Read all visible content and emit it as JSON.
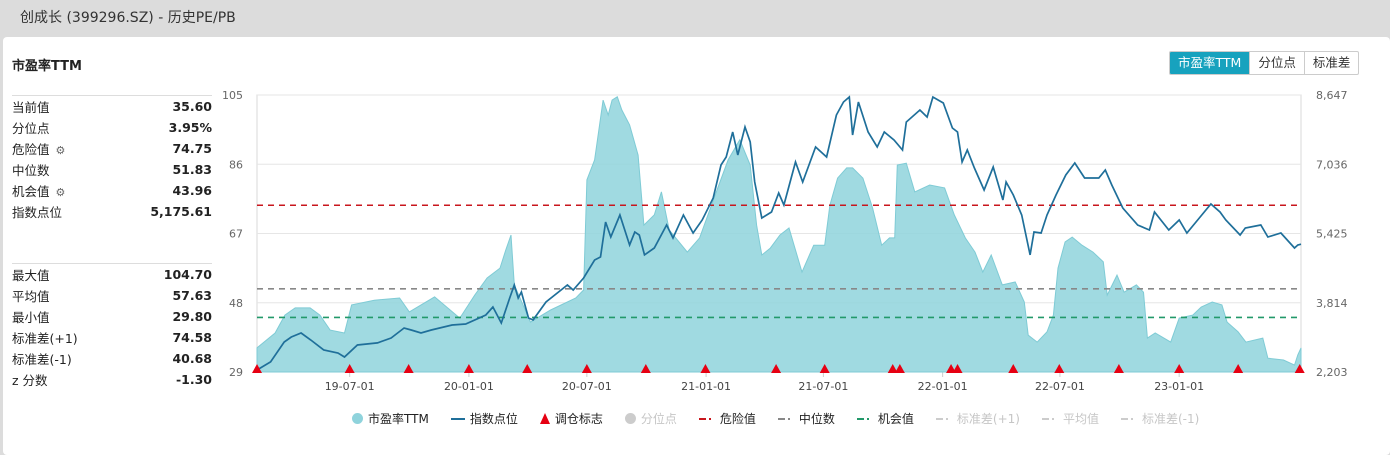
{
  "window": {
    "title": "创成长 (399296.SZ) - 历史PE/PB"
  },
  "section_title": "市盈率TTM",
  "toggle": {
    "options": [
      "市盈率TTM",
      "分位点",
      "标准差"
    ],
    "active": "市盈率TTM"
  },
  "stats_group1": [
    {
      "label": "当前值",
      "value": "35.60"
    },
    {
      "label": "分位点",
      "value": "3.95%"
    },
    {
      "label": "危险值",
      "value": "74.75",
      "icon": "gear-icon"
    },
    {
      "label": "中位数",
      "value": "51.83"
    },
    {
      "label": "机会值",
      "value": "43.96",
      "icon": "gear-icon"
    },
    {
      "label": "指数点位",
      "value": "5,175.61"
    }
  ],
  "stats_group2": [
    {
      "label": "最大值",
      "value": "104.70"
    },
    {
      "label": "平均值",
      "value": "57.63"
    },
    {
      "label": "最小值",
      "value": "29.80"
    },
    {
      "label": "标准差(+1)",
      "value": "74.58"
    },
    {
      "label": "标准差(-1)",
      "value": "40.68"
    },
    {
      "label": "z 分数",
      "value": "-1.30"
    }
  ],
  "chart_data": {
    "type": "area+line",
    "x_range": [
      "2019-02-08",
      "2023-07-08"
    ],
    "x_ticks": [
      "19-07-01",
      "20-01-01",
      "20-07-01",
      "21-01-01",
      "21-07-01",
      "22-01-01",
      "22-07-01",
      "23-01-01"
    ],
    "x_tick_dates": [
      "2019-07-01",
      "2020-01-01",
      "2020-07-01",
      "2021-01-01",
      "2021-07-01",
      "2022-01-01",
      "2022-07-01",
      "2023-01-01"
    ],
    "y_left": {
      "range": [
        29,
        105
      ],
      "ticks": [
        "105",
        "86",
        "67",
        "48",
        "29"
      ],
      "tick_values": [
        105,
        86,
        67,
        48,
        29
      ]
    },
    "y_right": {
      "range": [
        2203,
        8647
      ],
      "ticks": [
        "8,647",
        "7,036",
        "5,425",
        "3,814",
        "2,203"
      ],
      "tick_values": [
        8647,
        7036,
        5425,
        3814,
        2203
      ]
    },
    "grid": true,
    "colors": {
      "pe": "#8fd3dc",
      "index": "#1f6f9a",
      "rebalance": "#e60012",
      "danger": "#c8161d",
      "median": "#888888",
      "opportunity": "#22996a",
      "disabled": "#cccccc"
    },
    "reference_lines": [
      {
        "name": "危险值",
        "value": 74.75,
        "color": "#c8161d"
      },
      {
        "name": "中位数",
        "value": 51.83,
        "color": "#888888"
      },
      {
        "name": "机会值",
        "value": 43.96,
        "color": "#22996a"
      }
    ],
    "pe_series": {
      "name": "市盈率TTM",
      "points": [
        [
          "2019-02-08",
          35.6
        ],
        [
          "2019-03-08",
          39.7
        ],
        [
          "2019-03-23",
          44.6
        ],
        [
          "2019-04-08",
          46.6
        ],
        [
          "2019-05-01",
          46.6
        ],
        [
          "2019-05-16",
          44.6
        ],
        [
          "2019-06-01",
          40.5
        ],
        [
          "2019-06-23",
          39.7
        ],
        [
          "2019-07-04",
          47.4
        ],
        [
          "2019-08-08",
          48.7
        ],
        [
          "2019-09-16",
          49.3
        ],
        [
          "2019-10-01",
          45.5
        ],
        [
          "2019-11-09",
          49.6
        ],
        [
          "2019-12-18",
          43.8
        ],
        [
          "2020-01-10",
          50.1
        ],
        [
          "2020-01-29",
          54.8
        ],
        [
          "2020-02-18",
          57.5
        ],
        [
          "2020-02-27",
          62.5
        ],
        [
          "2020-03-06",
          66.6
        ],
        [
          "2020-03-11",
          52.9
        ],
        [
          "2020-04-05",
          42.7
        ],
        [
          "2020-05-06",
          46.0
        ],
        [
          "2020-06-14",
          49.3
        ],
        [
          "2020-06-26",
          51.5
        ],
        [
          "2020-07-01",
          81.7
        ],
        [
          "2020-07-13",
          87.2
        ],
        [
          "2020-07-26",
          103.6
        ],
        [
          "2020-08-03",
          99.5
        ],
        [
          "2020-08-09",
          103.6
        ],
        [
          "2020-08-17",
          104.5
        ],
        [
          "2020-08-24",
          100.9
        ],
        [
          "2020-09-05",
          96.8
        ],
        [
          "2020-09-18",
          88.5
        ],
        [
          "2020-09-27",
          69.3
        ],
        [
          "2020-10-13",
          72.1
        ],
        [
          "2020-10-24",
          78.4
        ],
        [
          "2020-11-05",
          68.0
        ],
        [
          "2020-12-03",
          61.9
        ],
        [
          "2020-12-22",
          65.8
        ],
        [
          "2021-01-15",
          77.6
        ],
        [
          "2021-02-04",
          87.2
        ],
        [
          "2021-02-22",
          92.7
        ],
        [
          "2021-03-10",
          85.8
        ],
        [
          "2021-03-20",
          69.3
        ],
        [
          "2021-03-28",
          61.1
        ],
        [
          "2021-04-10",
          63.0
        ],
        [
          "2021-04-25",
          66.6
        ],
        [
          "2021-05-09",
          68.5
        ],
        [
          "2021-05-29",
          56.4
        ],
        [
          "2021-06-16",
          63.8
        ],
        [
          "2021-07-03",
          63.8
        ],
        [
          "2021-07-11",
          74.8
        ],
        [
          "2021-07-23",
          82.2
        ],
        [
          "2021-08-06",
          85.0
        ],
        [
          "2021-08-15",
          85.0
        ],
        [
          "2021-08-31",
          82.2
        ],
        [
          "2021-09-15",
          74.0
        ],
        [
          "2021-09-29",
          63.8
        ],
        [
          "2021-10-11",
          65.8
        ],
        [
          "2021-10-19",
          65.8
        ],
        [
          "2021-10-23",
          85.8
        ],
        [
          "2021-11-06",
          86.3
        ],
        [
          "2021-11-19",
          78.4
        ],
        [
          "2021-12-12",
          80.3
        ],
        [
          "2022-01-04",
          79.5
        ],
        [
          "2022-01-19",
          72.1
        ],
        [
          "2022-02-05",
          65.8
        ],
        [
          "2022-02-20",
          61.9
        ],
        [
          "2022-03-04",
          56.4
        ],
        [
          "2022-03-17",
          61.1
        ],
        [
          "2022-04-03",
          52.9
        ],
        [
          "2022-04-23",
          53.7
        ],
        [
          "2022-05-07",
          48.2
        ],
        [
          "2022-05-13",
          39.1
        ],
        [
          "2022-05-27",
          37.2
        ],
        [
          "2022-06-11",
          40.0
        ],
        [
          "2022-06-21",
          44.6
        ],
        [
          "2022-06-28",
          57.5
        ],
        [
          "2022-07-09",
          64.7
        ],
        [
          "2022-07-20",
          66.0
        ],
        [
          "2022-08-04",
          63.8
        ],
        [
          "2022-08-21",
          61.9
        ],
        [
          "2022-09-06",
          59.2
        ],
        [
          "2022-09-12",
          50.1
        ],
        [
          "2022-09-27",
          55.6
        ],
        [
          "2022-10-08",
          50.9
        ],
        [
          "2022-10-27",
          52.9
        ],
        [
          "2022-11-07",
          50.9
        ],
        [
          "2022-11-13",
          38.3
        ],
        [
          "2022-11-25",
          39.7
        ],
        [
          "2022-12-19",
          37.2
        ],
        [
          "2023-01-01",
          43.8
        ],
        [
          "2023-01-22",
          44.6
        ],
        [
          "2023-02-04",
          46.8
        ],
        [
          "2023-02-21",
          48.2
        ],
        [
          "2023-03-08",
          47.4
        ],
        [
          "2023-03-16",
          42.7
        ],
        [
          "2023-04-02",
          40.0
        ],
        [
          "2023-04-14",
          37.2
        ],
        [
          "2023-05-10",
          38.3
        ],
        [
          "2023-05-18",
          32.8
        ],
        [
          "2023-06-11",
          32.3
        ],
        [
          "2023-06-28",
          30.9
        ],
        [
          "2023-07-03",
          33.7
        ],
        [
          "2023-07-08",
          35.6
        ]
      ]
    },
    "index_series": {
      "name": "指数点位",
      "points": [
        [
          "2019-02-08",
          2250
        ],
        [
          "2019-03-01",
          2437
        ],
        [
          "2019-03-22",
          2902
        ],
        [
          "2019-04-02",
          3018
        ],
        [
          "2019-04-17",
          3111
        ],
        [
          "2019-05-02",
          2948
        ],
        [
          "2019-05-22",
          2716
        ],
        [
          "2019-06-13",
          2646
        ],
        [
          "2019-06-23",
          2553
        ],
        [
          "2019-07-13",
          2832
        ],
        [
          "2019-08-13",
          2879
        ],
        [
          "2019-09-03",
          2995
        ],
        [
          "2019-09-23",
          3227
        ],
        [
          "2019-10-04",
          3181
        ],
        [
          "2019-10-19",
          3111
        ],
        [
          "2019-11-04",
          3181
        ],
        [
          "2019-12-06",
          3297
        ],
        [
          "2019-12-27",
          3320
        ],
        [
          "2020-01-27",
          3530
        ],
        [
          "2020-02-07",
          3716
        ],
        [
          "2020-02-20",
          3344
        ],
        [
          "2020-03-04",
          3925
        ],
        [
          "2020-03-11",
          4228
        ],
        [
          "2020-03-17",
          3925
        ],
        [
          "2020-03-22",
          4065
        ],
        [
          "2020-04-02",
          3460
        ],
        [
          "2020-04-09",
          3414
        ],
        [
          "2020-04-29",
          3832
        ],
        [
          "2020-06-01",
          4228
        ],
        [
          "2020-06-10",
          4111
        ],
        [
          "2020-06-26",
          4390
        ],
        [
          "2020-07-13",
          4809
        ],
        [
          "2020-07-22",
          4879
        ],
        [
          "2020-07-30",
          5693
        ],
        [
          "2020-08-07",
          5344
        ],
        [
          "2020-08-21",
          5856
        ],
        [
          "2020-09-05",
          5158
        ],
        [
          "2020-09-13",
          5460
        ],
        [
          "2020-09-20",
          5391
        ],
        [
          "2020-09-28",
          4926
        ],
        [
          "2020-10-13",
          5088
        ],
        [
          "2020-11-01",
          5623
        ],
        [
          "2020-11-11",
          5321
        ],
        [
          "2020-11-27",
          5856
        ],
        [
          "2020-12-12",
          5437
        ],
        [
          "2020-12-26",
          5740
        ],
        [
          "2021-01-12",
          6251
        ],
        [
          "2021-01-24",
          7019
        ],
        [
          "2021-02-01",
          7205
        ],
        [
          "2021-02-11",
          7786
        ],
        [
          "2021-02-19",
          7251
        ],
        [
          "2021-03-02",
          7903
        ],
        [
          "2021-03-10",
          7554
        ],
        [
          "2021-03-17",
          6623
        ],
        [
          "2021-03-28",
          5786
        ],
        [
          "2021-04-12",
          5926
        ],
        [
          "2021-04-23",
          6367
        ],
        [
          "2021-05-01",
          6088
        ],
        [
          "2021-05-19",
          7089
        ],
        [
          "2021-05-30",
          6623
        ],
        [
          "2021-06-19",
          7437
        ],
        [
          "2021-07-06",
          7205
        ],
        [
          "2021-07-21",
          8182
        ],
        [
          "2021-08-01",
          8484
        ],
        [
          "2021-08-10",
          8600
        ],
        [
          "2021-08-15",
          7716
        ],
        [
          "2021-08-24",
          8484
        ],
        [
          "2021-09-08",
          7786
        ],
        [
          "2021-09-22",
          7437
        ],
        [
          "2021-10-03",
          7786
        ],
        [
          "2021-10-18",
          7600
        ],
        [
          "2021-10-31",
          7368
        ],
        [
          "2021-11-06",
          8019
        ],
        [
          "2021-11-27",
          8298
        ],
        [
          "2021-12-08",
          8135
        ],
        [
          "2021-12-17",
          8600
        ],
        [
          "2022-01-02",
          8461
        ],
        [
          "2022-01-16",
          7879
        ],
        [
          "2022-01-24",
          7786
        ],
        [
          "2022-01-31",
          7089
        ],
        [
          "2022-02-08",
          7368
        ],
        [
          "2022-02-19",
          6949
        ],
        [
          "2022-03-06",
          6437
        ],
        [
          "2022-03-20",
          6972
        ],
        [
          "2022-04-04",
          6205
        ],
        [
          "2022-04-09",
          6623
        ],
        [
          "2022-04-20",
          6321
        ],
        [
          "2022-05-03",
          5856
        ],
        [
          "2022-05-16",
          4926
        ],
        [
          "2022-05-22",
          5460
        ],
        [
          "2022-06-02",
          5437
        ],
        [
          "2022-06-11",
          5856
        ],
        [
          "2022-06-25",
          6321
        ],
        [
          "2022-07-10",
          6786
        ],
        [
          "2022-07-24",
          7065
        ],
        [
          "2022-08-08",
          6716
        ],
        [
          "2022-08-30",
          6716
        ],
        [
          "2022-09-09",
          6902
        ],
        [
          "2022-09-19",
          6554
        ],
        [
          "2022-10-06",
          6019
        ],
        [
          "2022-10-29",
          5623
        ],
        [
          "2022-11-16",
          5507
        ],
        [
          "2022-11-24",
          5926
        ],
        [
          "2022-12-16",
          5507
        ],
        [
          "2023-01-01",
          5740
        ],
        [
          "2023-01-13",
          5437
        ],
        [
          "2023-02-01",
          5786
        ],
        [
          "2023-02-19",
          6111
        ],
        [
          "2023-03-05",
          5926
        ],
        [
          "2023-03-14",
          5740
        ],
        [
          "2023-04-05",
          5391
        ],
        [
          "2023-04-13",
          5553
        ],
        [
          "2023-05-07",
          5623
        ],
        [
          "2023-05-18",
          5344
        ],
        [
          "2023-06-07",
          5437
        ],
        [
          "2023-06-28",
          5088
        ],
        [
          "2023-07-03",
          5158
        ],
        [
          "2023-07-08",
          5175.61
        ]
      ]
    },
    "rebalance_dates": [
      "2019-02-08",
      "2019-07-01",
      "2019-09-30",
      "2020-01-01",
      "2020-03-31",
      "2020-07-01",
      "2020-09-30",
      "2020-12-31",
      "2021-04-19",
      "2021-07-03",
      "2021-10-16",
      "2021-10-27",
      "2022-01-14",
      "2022-01-24",
      "2022-04-20",
      "2022-06-30",
      "2022-09-30",
      "2023-01-01",
      "2023-04-02",
      "2023-07-06"
    ],
    "legend": [
      {
        "label": "市盈率TTM",
        "symbol": "circle",
        "color": "#8fd3dc",
        "enabled": true
      },
      {
        "label": "指数点位",
        "symbol": "line",
        "color": "#1f6f9a",
        "enabled": true
      },
      {
        "label": "调仓标志",
        "symbol": "triangle",
        "color": "#e60012",
        "enabled": true
      },
      {
        "label": "分位点",
        "symbol": "circle",
        "color": "#cccccc",
        "enabled": false
      },
      {
        "label": "危险值",
        "symbol": "dash",
        "color": "#c8161d",
        "enabled": true
      },
      {
        "label": "中位数",
        "symbol": "dash",
        "color": "#888888",
        "enabled": true
      },
      {
        "label": "机会值",
        "symbol": "dash",
        "color": "#22996a",
        "enabled": true
      },
      {
        "label": "标准差(+1)",
        "symbol": "dash",
        "color": "#cccccc",
        "enabled": false
      },
      {
        "label": "平均值",
        "symbol": "dash",
        "color": "#cccccc",
        "enabled": false
      },
      {
        "label": "标准差(-1)",
        "symbol": "dash",
        "color": "#cccccc",
        "enabled": false
      }
    ]
  }
}
